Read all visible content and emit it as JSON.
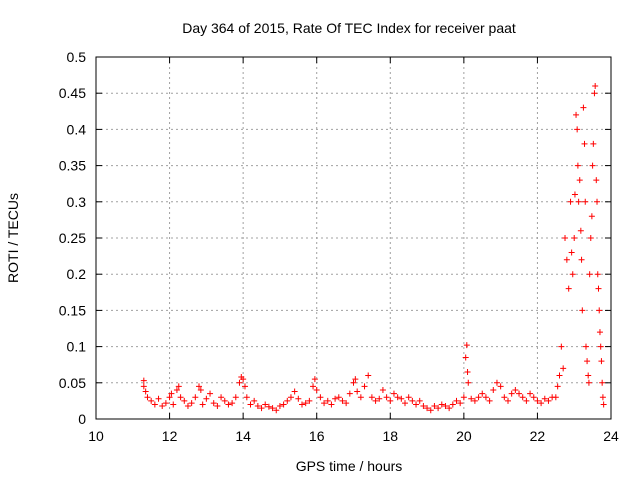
{
  "chart_data": {
    "type": "scatter",
    "title": "Day 364 of 2015, Rate Of TEC Index for receiver paat",
    "xlabel": "GPS time / hours",
    "ylabel": "ROTI / TECUs",
    "xlim": [
      10,
      24
    ],
    "ylim": [
      0,
      0.5
    ],
    "x_ticks": [
      10,
      12,
      14,
      16,
      18,
      20,
      22,
      24
    ],
    "x_tick_labels": [
      "10",
      "12",
      "14",
      "16",
      "18",
      "20",
      "22",
      "24"
    ],
    "y_ticks": [
      0,
      0.05,
      0.1,
      0.15,
      0.2,
      0.25,
      0.3,
      0.35,
      0.4,
      0.45,
      0.5
    ],
    "y_tick_labels": [
      "0",
      "0.05",
      "0.1",
      "0.15",
      "0.2",
      "0.25",
      "0.3",
      "0.35",
      "0.4",
      "0.45",
      "0.5"
    ],
    "grid": true,
    "marker": "plus",
    "color": "#ff0000",
    "series": [
      {
        "points": [
          [
            11.3,
            0.053
          ],
          [
            11.3,
            0.045
          ],
          [
            11.35,
            0.038
          ],
          [
            11.4,
            0.03
          ],
          [
            11.5,
            0.025
          ],
          [
            11.6,
            0.02
          ],
          [
            11.7,
            0.028
          ],
          [
            11.8,
            0.018
          ],
          [
            11.9,
            0.022
          ],
          [
            12.0,
            0.03
          ],
          [
            12.05,
            0.035
          ],
          [
            12.1,
            0.02
          ],
          [
            12.2,
            0.04
          ],
          [
            12.25,
            0.045
          ],
          [
            12.3,
            0.03
          ],
          [
            12.4,
            0.025
          ],
          [
            12.5,
            0.018
          ],
          [
            12.6,
            0.022
          ],
          [
            12.7,
            0.03
          ],
          [
            12.8,
            0.045
          ],
          [
            12.85,
            0.04
          ],
          [
            12.9,
            0.02
          ],
          [
            13.0,
            0.028
          ],
          [
            13.1,
            0.035
          ],
          [
            13.2,
            0.022
          ],
          [
            13.3,
            0.018
          ],
          [
            13.4,
            0.03
          ],
          [
            13.5,
            0.025
          ],
          [
            13.6,
            0.02
          ],
          [
            13.7,
            0.022
          ],
          [
            13.8,
            0.03
          ],
          [
            13.9,
            0.05
          ],
          [
            13.95,
            0.058
          ],
          [
            14.0,
            0.055
          ],
          [
            14.05,
            0.045
          ],
          [
            14.1,
            0.03
          ],
          [
            14.2,
            0.02
          ],
          [
            14.3,
            0.025
          ],
          [
            14.4,
            0.018
          ],
          [
            14.5,
            0.015
          ],
          [
            14.6,
            0.02
          ],
          [
            14.7,
            0.017
          ],
          [
            14.8,
            0.015
          ],
          [
            14.9,
            0.012
          ],
          [
            15.0,
            0.018
          ],
          [
            15.1,
            0.02
          ],
          [
            15.2,
            0.025
          ],
          [
            15.3,
            0.03
          ],
          [
            15.4,
            0.038
          ],
          [
            15.5,
            0.028
          ],
          [
            15.6,
            0.02
          ],
          [
            15.7,
            0.022
          ],
          [
            15.8,
            0.025
          ],
          [
            15.9,
            0.045
          ],
          [
            15.95,
            0.055
          ],
          [
            16.0,
            0.04
          ],
          [
            16.1,
            0.03
          ],
          [
            16.2,
            0.022
          ],
          [
            16.3,
            0.025
          ],
          [
            16.4,
            0.02
          ],
          [
            16.5,
            0.028
          ],
          [
            16.6,
            0.03
          ],
          [
            16.7,
            0.025
          ],
          [
            16.8,
            0.022
          ],
          [
            16.9,
            0.035
          ],
          [
            17.0,
            0.05
          ],
          [
            17.05,
            0.055
          ],
          [
            17.1,
            0.038
          ],
          [
            17.2,
            0.03
          ],
          [
            17.3,
            0.045
          ],
          [
            17.4,
            0.06
          ],
          [
            17.5,
            0.03
          ],
          [
            17.6,
            0.025
          ],
          [
            17.7,
            0.028
          ],
          [
            17.8,
            0.04
          ],
          [
            17.9,
            0.03
          ],
          [
            18.0,
            0.025
          ],
          [
            18.1,
            0.035
          ],
          [
            18.2,
            0.03
          ],
          [
            18.3,
            0.028
          ],
          [
            18.4,
            0.022
          ],
          [
            18.5,
            0.03
          ],
          [
            18.6,
            0.025
          ],
          [
            18.7,
            0.02
          ],
          [
            18.8,
            0.025
          ],
          [
            18.9,
            0.018
          ],
          [
            19.0,
            0.015
          ],
          [
            19.1,
            0.012
          ],
          [
            19.2,
            0.018
          ],
          [
            19.3,
            0.015
          ],
          [
            19.4,
            0.02
          ],
          [
            19.5,
            0.018
          ],
          [
            19.6,
            0.015
          ],
          [
            19.7,
            0.02
          ],
          [
            19.8,
            0.025
          ],
          [
            19.9,
            0.022
          ],
          [
            20.0,
            0.03
          ],
          [
            20.05,
            0.085
          ],
          [
            20.08,
            0.102
          ],
          [
            20.1,
            0.065
          ],
          [
            20.12,
            0.05
          ],
          [
            20.2,
            0.028
          ],
          [
            20.3,
            0.025
          ],
          [
            20.4,
            0.03
          ],
          [
            20.5,
            0.035
          ],
          [
            20.6,
            0.03
          ],
          [
            20.7,
            0.025
          ],
          [
            20.8,
            0.04
          ],
          [
            20.9,
            0.05
          ],
          [
            21.0,
            0.045
          ],
          [
            21.1,
            0.03
          ],
          [
            21.2,
            0.025
          ],
          [
            21.3,
            0.035
          ],
          [
            21.4,
            0.04
          ],
          [
            21.5,
            0.035
          ],
          [
            21.6,
            0.03
          ],
          [
            21.7,
            0.025
          ],
          [
            21.8,
            0.035
          ],
          [
            21.9,
            0.03
          ],
          [
            22.0,
            0.025
          ],
          [
            22.1,
            0.022
          ],
          [
            22.2,
            0.028
          ],
          [
            22.3,
            0.025
          ],
          [
            22.4,
            0.03
          ],
          [
            22.5,
            0.03
          ],
          [
            22.55,
            0.045
          ],
          [
            22.6,
            0.06
          ],
          [
            22.65,
            0.1
          ],
          [
            22.7,
            0.07
          ],
          [
            22.75,
            0.25
          ],
          [
            22.8,
            0.22
          ],
          [
            22.85,
            0.18
          ],
          [
            22.9,
            0.3
          ],
          [
            22.93,
            0.23
          ],
          [
            22.96,
            0.2
          ],
          [
            23.0,
            0.25
          ],
          [
            23.02,
            0.31
          ],
          [
            23.05,
            0.42
          ],
          [
            23.08,
            0.4
          ],
          [
            23.1,
            0.35
          ],
          [
            23.12,
            0.3
          ],
          [
            23.15,
            0.33
          ],
          [
            23.18,
            0.26
          ],
          [
            23.2,
            0.22
          ],
          [
            23.22,
            0.15
          ],
          [
            23.25,
            0.43
          ],
          [
            23.28,
            0.38
          ],
          [
            23.3,
            0.3
          ],
          [
            23.32,
            0.1
          ],
          [
            23.35,
            0.08
          ],
          [
            23.38,
            0.06
          ],
          [
            23.4,
            0.05
          ],
          [
            23.42,
            0.2
          ],
          [
            23.45,
            0.25
          ],
          [
            23.48,
            0.28
          ],
          [
            23.5,
            0.35
          ],
          [
            23.52,
            0.38
          ],
          [
            23.55,
            0.45
          ],
          [
            23.57,
            0.46
          ],
          [
            23.6,
            0.33
          ],
          [
            23.62,
            0.3
          ],
          [
            23.64,
            0.2
          ],
          [
            23.66,
            0.18
          ],
          [
            23.68,
            0.15
          ],
          [
            23.7,
            0.12
          ],
          [
            23.72,
            0.1
          ],
          [
            23.74,
            0.08
          ],
          [
            23.76,
            0.05
          ],
          [
            23.78,
            0.03
          ],
          [
            23.8,
            0.02
          ]
        ]
      }
    ]
  }
}
